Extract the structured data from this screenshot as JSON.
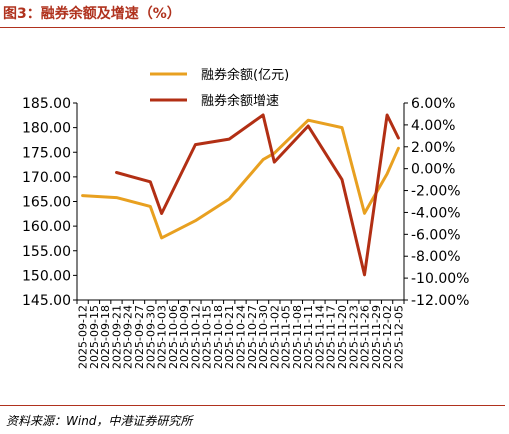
{
  "figure_title": "图3：融券余额及增速（%）",
  "source_note": "资料来源：Wind，中港证券研究所",
  "colors": {
    "accent": "#b0321e",
    "balance": "#e8a020",
    "growth": "#b22f14"
  },
  "chart_data": {
    "type": "line",
    "x": [
      "2025-09-12",
      "2025-09-15",
      "2025-09-18",
      "2025-09-21",
      "2025-09-24",
      "2025-09-27",
      "2025-09-30",
      "2025-10-03",
      "2025-10-06",
      "2025-10-09",
      "2025-10-12",
      "2025-10-15",
      "2025-10-18",
      "2025-10-21",
      "2025-10-24",
      "2025-10-27",
      "2025-10-30",
      "2025-11-02",
      "2025-11-05",
      "2025-11-08",
      "2025-11-11",
      "2025-11-14",
      "2025-11-17",
      "2025-11-20",
      "2025-11-23",
      "2025-11-26",
      "2025-11-29",
      "2025-12-02",
      "2025-12-05"
    ],
    "series": [
      {
        "name": "融券余额(亿元)",
        "axis": "left",
        "color": "#e8a020",
        "values": [
          166.2,
          null,
          null,
          165.8,
          null,
          null,
          164.0,
          157.6,
          null,
          null,
          161.1,
          null,
          null,
          165.5,
          null,
          null,
          173.5,
          174.8,
          null,
          null,
          181.5,
          null,
          null,
          180.0,
          null,
          162.6,
          null,
          170.6,
          175.8
        ]
      },
      {
        "name": "融券余额增速",
        "axis": "right",
        "color": "#b22f14",
        "values": [
          null,
          null,
          null,
          -0.35,
          null,
          null,
          -1.2,
          -4.1,
          null,
          null,
          2.2,
          null,
          null,
          2.7,
          null,
          null,
          4.9,
          0.6,
          null,
          null,
          3.9,
          null,
          null,
          -1.0,
          null,
          -9.7,
          null,
          4.9,
          2.8
        ]
      }
    ],
    "left_axis": {
      "ylim": [
        145,
        185
      ],
      "ticks": [
        "145.00",
        "150.00",
        "155.00",
        "160.00",
        "165.00",
        "170.00",
        "175.00",
        "180.00",
        "185.00"
      ]
    },
    "right_axis": {
      "ylim": [
        -12,
        6
      ],
      "ticks": [
        "-12.00%",
        "-10.00%",
        "-8.00%",
        "-6.00%",
        "-4.00%",
        "-2.00%",
        "0.00%",
        "2.00%",
        "4.00%",
        "6.00%"
      ]
    },
    "legend": [
      "融券余额(亿元)",
      "融券余额增速"
    ],
    "legend_position": "top-center",
    "grid": false
  }
}
